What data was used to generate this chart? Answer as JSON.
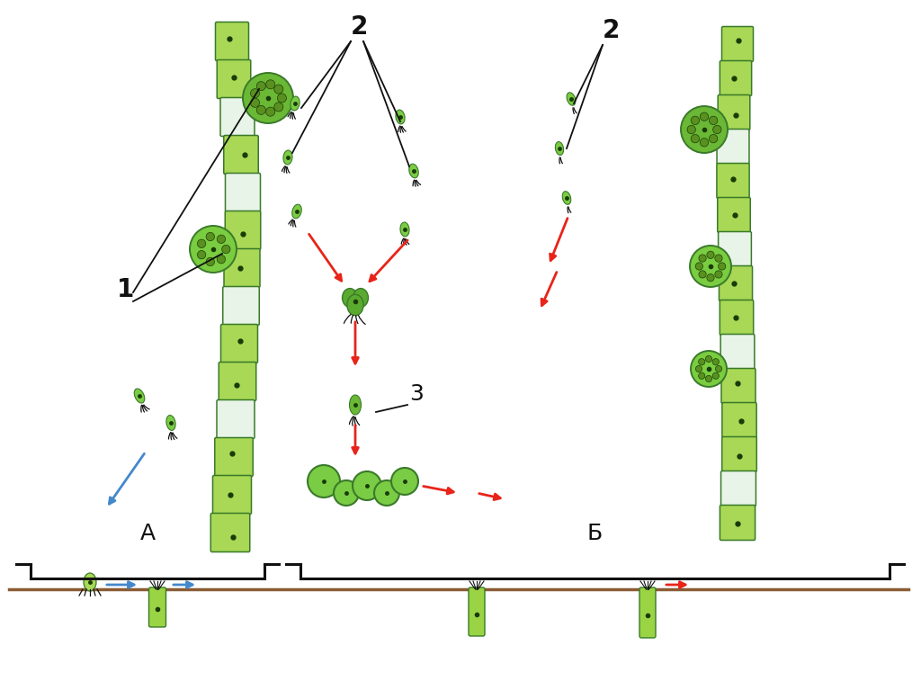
{
  "background_color": "#ffffff",
  "label_A": "A",
  "label_B": "Б",
  "label_1": "1",
  "label_2_center": "2",
  "label_2_right": "2",
  "label_3": "3",
  "figsize": [
    10.24,
    7.67
  ],
  "dpi": 100,
  "red": "#e8241a",
  "blue": "#4488cc",
  "black": "#111111",
  "brown": "#8B5C34",
  "cg_border": "#3a7a2a",
  "cg_fill_light": "#a8d855",
  "cg_fill_mid": "#7ab830",
  "cg_fill_dark": "#5a9020",
  "cg_spore_fill": "#6ab835",
  "cg_spore_dark": "#3a6a18",
  "nucleus": "#1a3a08",
  "zygote_fill": "#5aa830",
  "flagella_color": "#111111"
}
